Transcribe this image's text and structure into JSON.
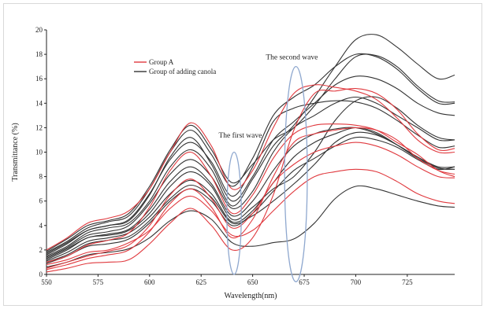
{
  "chart_data": {
    "type": "line",
    "title": "",
    "xlabel": "Wavelength(nm)",
    "ylabel": "Transmittance (%)",
    "xlim": [
      550,
      748
    ],
    "ylim": [
      0,
      20
    ],
    "x_ticks": [
      550,
      575,
      600,
      625,
      650,
      675,
      700,
      725
    ],
    "y_ticks": [
      0,
      2,
      4,
      6,
      8,
      10,
      12,
      14,
      16,
      18,
      20
    ],
    "grid": false,
    "legend_position": "upper-left",
    "legend": [
      {
        "label": "Group A",
        "color": "#e0393e"
      },
      {
        "label": "Group of adding canola",
        "color": "#333333"
      }
    ],
    "annotations": [
      {
        "text": "The first wave",
        "x": 644,
        "y": 11.2
      },
      {
        "text": "The second wave",
        "x": 669,
        "y": 17.6
      }
    ],
    "highlight_ellipses": [
      {
        "name": "first-wave-ellipse",
        "cx": 641,
        "cy": 5.0,
        "rx": 3.5,
        "ry": 5.0,
        "color": "#8fa8cf"
      },
      {
        "name": "second-wave-ellipse",
        "cx": 671,
        "cy": 8.2,
        "rx": 5.5,
        "ry": 8.8,
        "color": "#8fa8cf"
      }
    ],
    "x": [
      550,
      560,
      570,
      580,
      590,
      600,
      610,
      620,
      630,
      640,
      650,
      660,
      670,
      680,
      690,
      700,
      710,
      720,
      730,
      740,
      748
    ],
    "series": [
      {
        "group": "Group A",
        "color": "#e0393e",
        "values": [
          0.2,
          0.5,
          0.9,
          1.0,
          1.2,
          2.5,
          4.2,
          5.4,
          4.0,
          2.0,
          3.0,
          6.5,
          11.8,
          14.8,
          15.0,
          15.2,
          14.8,
          13.5,
          11.5,
          10.2,
          10.3
        ]
      },
      {
        "group": "Group A",
        "color": "#e0393e",
        "values": [
          0.4,
          0.8,
          1.3,
          1.6,
          2.0,
          3.5,
          5.8,
          7.0,
          5.5,
          3.0,
          4.5,
          8.0,
          10.8,
          11.5,
          11.8,
          12.0,
          11.8,
          11.0,
          9.5,
          8.5,
          8.2
        ]
      },
      {
        "group": "Group A",
        "color": "#e0393e",
        "values": [
          0.5,
          1.0,
          1.5,
          1.9,
          2.4,
          4.0,
          6.5,
          7.8,
          6.2,
          3.8,
          5.0,
          7.5,
          9.0,
          10.0,
          10.5,
          10.8,
          10.5,
          9.8,
          8.8,
          8.0,
          7.9
        ]
      },
      {
        "group": "Group A",
        "color": "#e0393e",
        "values": [
          1.0,
          1.5,
          2.4,
          2.8,
          3.4,
          5.5,
          8.5,
          10.0,
          8.0,
          5.0,
          6.5,
          9.5,
          11.5,
          12.2,
          12.3,
          12.2,
          11.8,
          10.8,
          9.8,
          8.5,
          8.0
        ]
      },
      {
        "group": "Group A",
        "color": "#e0393e",
        "values": [
          2.0,
          3.0,
          4.2,
          4.6,
          5.2,
          7.0,
          10.0,
          12.4,
          10.5,
          7.0,
          8.5,
          12.0,
          14.8,
          15.5,
          15.3,
          15.0,
          14.3,
          12.8,
          11.0,
          10.0,
          10.0
        ]
      },
      {
        "group": "Group A",
        "color": "#e0393e",
        "values": [
          0.8,
          1.2,
          1.8,
          2.0,
          2.6,
          3.6,
          5.4,
          6.4,
          5.2,
          3.2,
          3.6,
          5.2,
          6.8,
          8.0,
          8.4,
          8.6,
          8.4,
          7.6,
          6.6,
          6.0,
          5.8
        ]
      },
      {
        "group": "Group of adding canola",
        "color": "#333333",
        "values": [
          1.6,
          2.5,
          3.6,
          4.0,
          4.4,
          6.5,
          9.6,
          11.2,
          9.0,
          6.0,
          8.0,
          11.0,
          12.5,
          14.0,
          15.5,
          16.2,
          16.0,
          15.2,
          14.0,
          13.2,
          13.0
        ]
      },
      {
        "group": "Group of adding canola",
        "color": "#333333",
        "values": [
          1.2,
          2.0,
          3.0,
          3.2,
          3.6,
          5.0,
          7.2,
          8.4,
          7.2,
          4.5,
          5.5,
          7.0,
          8.0,
          10.0,
          12.6,
          14.2,
          14.5,
          13.6,
          12.2,
          11.2,
          11.0
        ]
      },
      {
        "group": "Group of adding canola",
        "color": "#333333",
        "values": [
          1.4,
          2.2,
          3.2,
          3.5,
          4.0,
          5.8,
          8.2,
          9.4,
          8.0,
          5.4,
          6.8,
          10.0,
          12.0,
          13.0,
          14.0,
          14.5,
          14.0,
          13.0,
          12.0,
          11.0,
          11.0
        ]
      },
      {
        "group": "Group of adding canola",
        "color": "#333333",
        "values": [
          0.9,
          1.5,
          2.3,
          2.5,
          2.9,
          4.2,
          6.0,
          7.0,
          6.0,
          4.0,
          5.0,
          6.8,
          8.5,
          9.5,
          10.5,
          11.2,
          11.0,
          10.4,
          9.4,
          8.6,
          8.8
        ]
      },
      {
        "group": "Group of adding canola",
        "color": "#333333",
        "values": [
          1.3,
          2.1,
          3.0,
          3.3,
          3.7,
          5.3,
          7.6,
          8.8,
          7.4,
          4.8,
          6.0,
          8.5,
          10.5,
          11.5,
          11.9,
          12.0,
          11.5,
          10.6,
          9.6,
          8.7,
          8.6
        ]
      },
      {
        "group": "Group of adding canola",
        "color": "#333333",
        "values": [
          0.6,
          1.0,
          1.6,
          1.8,
          2.1,
          3.0,
          4.4,
          5.2,
          4.5,
          2.6,
          2.3,
          2.6,
          2.9,
          4.2,
          6.2,
          7.2,
          7.0,
          6.5,
          6.0,
          5.6,
          5.5
        ]
      },
      {
        "group": "Group of adding canola",
        "color": "#333333",
        "values": [
          1.8,
          2.7,
          3.8,
          4.3,
          4.8,
          7.0,
          10.0,
          11.8,
          9.8,
          7.2,
          9.5,
          13.0,
          14.5,
          15.5,
          17.0,
          18.0,
          17.8,
          16.8,
          15.2,
          14.0,
          14.0
        ]
      },
      {
        "group": "Group of adding canola",
        "color": "#333333",
        "values": [
          1.5,
          2.3,
          3.4,
          3.8,
          4.2,
          6.0,
          8.8,
          10.2,
          8.6,
          5.6,
          7.8,
          10.5,
          12.2,
          14.5,
          17.0,
          19.2,
          19.6,
          18.6,
          17.2,
          16.0,
          16.3
        ]
      },
      {
        "group": "Group of adding canola",
        "color": "#333333",
        "values": [
          1.7,
          2.6,
          3.6,
          4.0,
          4.5,
          6.6,
          9.4,
          10.8,
          9.2,
          6.4,
          8.8,
          12.5,
          13.6,
          14.0,
          14.2,
          14.1,
          13.6,
          12.6,
          11.4,
          10.4,
          10.5
        ]
      },
      {
        "group": "Group of adding canola",
        "color": "#333333",
        "values": [
          1.1,
          1.8,
          2.7,
          3.0,
          3.4,
          4.7,
          6.6,
          7.7,
          6.6,
          4.3,
          5.2,
          7.5,
          9.6,
          10.8,
          11.5,
          12.0,
          11.6,
          10.6,
          9.5,
          8.7,
          8.6
        ]
      },
      {
        "group": "Group of adding canola",
        "color": "#333333",
        "values": [
          1.9,
          2.9,
          4.0,
          4.4,
          5.0,
          7.2,
          10.2,
          12.2,
          10.2,
          7.5,
          9.0,
          11.0,
          12.0,
          13.8,
          16.0,
          17.8,
          17.9,
          17.0,
          15.4,
          14.2,
          14.1
        ]
      },
      {
        "group": "Group of adding canola",
        "color": "#333333",
        "values": [
          1.0,
          1.6,
          2.5,
          2.8,
          3.1,
          4.4,
          6.2,
          7.3,
          6.3,
          4.2,
          4.8,
          6.0,
          7.4,
          9.0,
          10.8,
          11.6,
          11.4,
          10.6,
          9.6,
          8.8,
          8.8
        ]
      }
    ]
  }
}
